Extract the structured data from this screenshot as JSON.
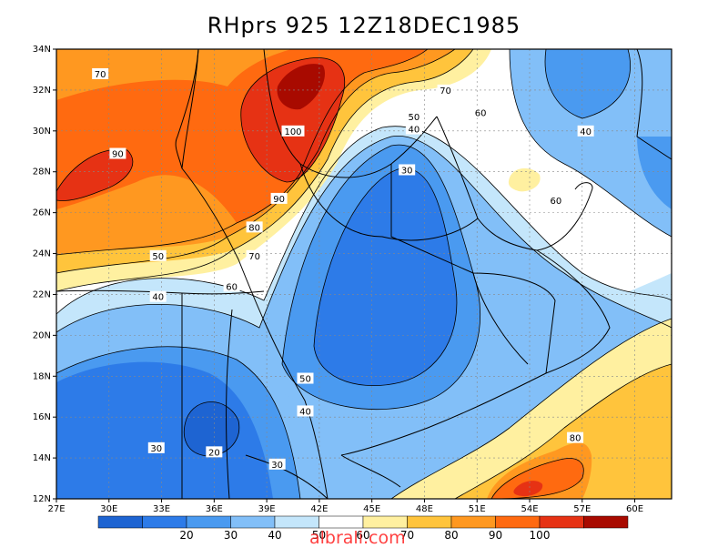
{
  "title": "RHprs 925 12Z18DEC1985",
  "watermark": "albrali.com",
  "lat_labels": [
    "34N",
    "32N",
    "30N",
    "28N",
    "26N",
    "24N",
    "22N",
    "20N",
    "18N",
    "16N",
    "14N",
    "12N"
  ],
  "lat_values": [
    34,
    32,
    30,
    28,
    26,
    24,
    22,
    20,
    18,
    16,
    14,
    12
  ],
  "lon_labels": [
    "27E",
    "30E",
    "33E",
    "36E",
    "39E",
    "42E",
    "45E",
    "48E",
    "51E",
    "54E",
    "57E",
    "60E"
  ],
  "lon_values": [
    27,
    30,
    33,
    36,
    39,
    42,
    45,
    48,
    51,
    54,
    57,
    60
  ],
  "legend": {
    "labels": [
      "20",
      "30",
      "40",
      "50",
      "60",
      "70",
      "80",
      "90",
      "100"
    ],
    "colors": [
      "#1e64d2",
      "#2d7be8",
      "#4a9af0",
      "#82bff8",
      "#c4e6fb",
      "#ffffff",
      "#fff0a0",
      "#ffc43c",
      "#ff9820",
      "#ff6a10",
      "#e63214",
      "#a80a00"
    ]
  },
  "contour_labels": [
    {
      "text": "70",
      "lon": 29.5,
      "lat": 32.8
    },
    {
      "text": "90",
      "lon": 30.5,
      "lat": 28.9
    },
    {
      "text": "100",
      "lon": 40.5,
      "lat": 30.0
    },
    {
      "text": "90",
      "lon": 39.7,
      "lat": 26.7
    },
    {
      "text": "80",
      "lon": 38.3,
      "lat": 25.3
    },
    {
      "text": "70",
      "lon": 38.3,
      "lat": 23.9
    },
    {
      "text": "60",
      "lon": 37.0,
      "lat": 22.4
    },
    {
      "text": "50",
      "lon": 32.8,
      "lat": 23.9
    },
    {
      "text": "40",
      "lon": 32.8,
      "lat": 21.9
    },
    {
      "text": "70",
      "lon": 49.2,
      "lat": 32.0
    },
    {
      "text": "50",
      "lon": 47.4,
      "lat": 30.7
    },
    {
      "text": "40",
      "lon": 47.4,
      "lat": 30.1
    },
    {
      "text": "60",
      "lon": 51.2,
      "lat": 30.9
    },
    {
      "text": "40",
      "lon": 57.2,
      "lat": 30.0
    },
    {
      "text": "30",
      "lon": 47.0,
      "lat": 28.1
    },
    {
      "text": "60",
      "lon": 55.5,
      "lat": 26.6
    },
    {
      "text": "50",
      "lon": 41.2,
      "lat": 17.9
    },
    {
      "text": "40",
      "lon": 41.2,
      "lat": 16.3
    },
    {
      "text": "30",
      "lon": 32.7,
      "lat": 14.5
    },
    {
      "text": "20",
      "lon": 36.0,
      "lat": 14.3
    },
    {
      "text": "30",
      "lon": 39.6,
      "lat": 13.7
    },
    {
      "text": "80",
      "lon": 56.6,
      "lat": 15.0
    }
  ]
}
